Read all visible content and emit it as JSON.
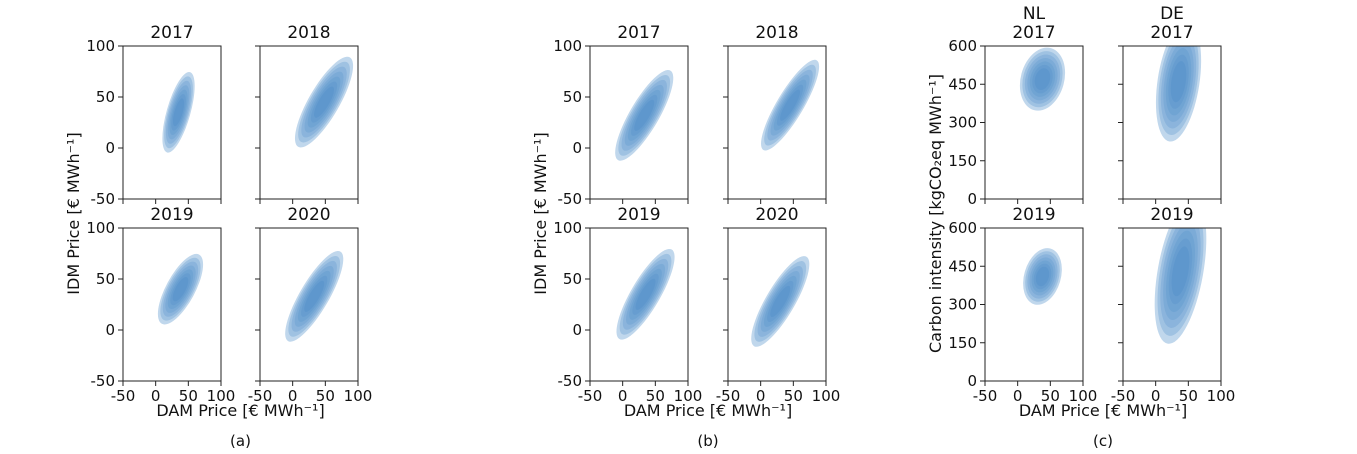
{
  "chart_data": {
    "type": "kde-contour",
    "color": "#4a8bc8",
    "groups": [
      {
        "caption": "(a)",
        "ylabel": "IDM Price [€ MWh⁻¹]",
        "xlabel": "DAM Price [€ MWh⁻¹]",
        "xlim": [
          -50,
          100
        ],
        "ylim": [
          -50,
          100
        ],
        "xticks": [
          -50,
          0,
          50,
          100
        ],
        "yticks": [
          -50,
          0,
          50,
          100
        ],
        "panels": [
          {
            "title": [
              "2017"
            ],
            "center": [
              35,
              35
            ],
            "sx": 10,
            "sy": 16,
            "rho": 0.65
          },
          {
            "title": [
              "2018"
            ],
            "center": [
              48,
              45
            ],
            "sx": 18,
            "sy": 18,
            "rho": 0.8
          },
          {
            "title": [
              "2019"
            ],
            "center": [
              38,
              40
            ],
            "sx": 14,
            "sy": 14,
            "rho": 0.7
          },
          {
            "title": [
              "2020"
            ],
            "center": [
              33,
              33
            ],
            "sx": 18,
            "sy": 18,
            "rho": 0.82
          }
        ]
      },
      {
        "caption": "(b)",
        "ylabel": "IDM Price [€ MWh⁻¹]",
        "xlabel": "DAM Price [€ MWh⁻¹]",
        "xlim": [
          -50,
          100
        ],
        "ylim": [
          -50,
          100
        ],
        "xticks": [
          -50,
          0,
          50,
          100
        ],
        "yticks": [
          -50,
          0,
          50,
          100
        ],
        "panels": [
          {
            "title": [
              "2017"
            ],
            "center": [
              33,
              32
            ],
            "sx": 18,
            "sy": 18,
            "rho": 0.82
          },
          {
            "title": [
              "2018"
            ],
            "center": [
              45,
              42
            ],
            "sx": 18,
            "sy": 18,
            "rho": 0.85
          },
          {
            "title": [
              "2019"
            ],
            "center": [
              35,
              35
            ],
            "sx": 18,
            "sy": 18,
            "rho": 0.82
          },
          {
            "title": [
              "2020"
            ],
            "center": [
              30,
              28
            ],
            "sx": 18,
            "sy": 18,
            "rho": 0.82
          }
        ]
      },
      {
        "caption": "(c)",
        "ylabel": "Carbon intensity [kgCO₂eq MWh⁻¹]",
        "xlabel": "DAM Price [€ MWh⁻¹]",
        "xlim": [
          -50,
          100
        ],
        "ylim": [
          0,
          600
        ],
        "xticks": [
          -50,
          0,
          50,
          100
        ],
        "yticks": [
          0,
          150,
          300,
          450,
          600
        ],
        "panels": [
          {
            "title": [
              "NL",
              "2017"
            ],
            "center": [
              38,
              470
            ],
            "sx": 14,
            "sy": 50,
            "rho": 0.2
          },
          {
            "title": [
              "DE",
              "2017"
            ],
            "center": [
              35,
              460
            ],
            "sx": 14,
            "sy": 95,
            "rho": 0.35
          },
          {
            "title": [
              "2019"
            ],
            "center": [
              38,
              410
            ],
            "sx": 12,
            "sy": 45,
            "rho": 0.25
          },
          {
            "title": [
              "2019"
            ],
            "center": [
              38,
              430
            ],
            "sx": 16,
            "sy": 115,
            "rho": 0.45
          }
        ]
      }
    ]
  }
}
